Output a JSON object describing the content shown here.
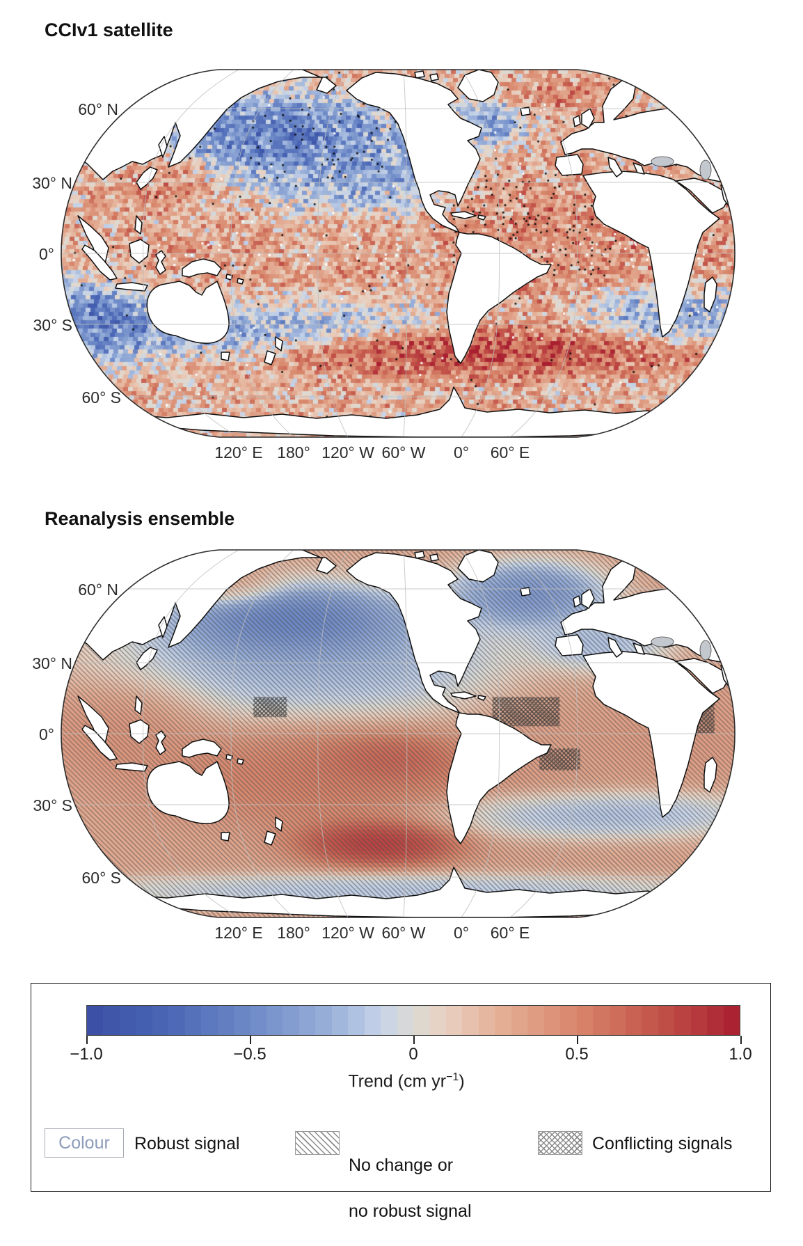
{
  "panels": [
    {
      "title": "CCIv1 satellite",
      "lat_ticks": [
        "60° N",
        "30° N",
        "0°",
        "30° S",
        "60° S"
      ],
      "lon_ticks": [
        "120° E",
        "180°",
        "120° W",
        "60° W",
        "0°",
        "60° E"
      ]
    },
    {
      "title": "Reanalysis ensemble",
      "lat_ticks": [
        "60° N",
        "30° N",
        "0°",
        "30° S",
        "60° S"
      ],
      "lon_ticks": [
        "120° E",
        "180°",
        "120° W",
        "60° W",
        "0°",
        "60° E"
      ]
    }
  ],
  "colorbar": {
    "tick_labels": [
      "−1.0",
      "−0.5",
      "0",
      "0.5",
      "1.0"
    ],
    "label_prefix": "Trend (cm yr",
    "label_sup": "−1",
    "label_suffix": ")",
    "n_segments": 40,
    "stops": [
      [
        0.0,
        "#3a4fa4"
      ],
      [
        0.125,
        "#4a66b5"
      ],
      [
        0.25,
        "#6d89c7"
      ],
      [
        0.375,
        "#9ab1da"
      ],
      [
        0.45,
        "#c6d3e8"
      ],
      [
        0.5,
        "#dcdad4"
      ],
      [
        0.55,
        "#e9d0c0"
      ],
      [
        0.625,
        "#e5b29a"
      ],
      [
        0.75,
        "#d8866b"
      ],
      [
        0.875,
        "#c25349"
      ],
      [
        1.0,
        "#a81e30"
      ]
    ]
  },
  "legend": [
    {
      "chip": "colour-box",
      "chip_text": "Colour",
      "label": "Robust signal"
    },
    {
      "chip": "diagonal-hatch",
      "lines": [
        "No change or",
        "no robust signal"
      ]
    },
    {
      "chip": "cross-hatch",
      "label": "Conflicting signals"
    }
  ],
  "chart_data": {
    "type": "heatmap",
    "title": "Sea-level trend comparison: satellite vs reanalysis ensemble",
    "unit": "cm yr−1",
    "colorbar_range": [
      -1.0,
      1.0
    ],
    "colorbar_ticks": [
      -1.0,
      -0.5,
      0,
      0.5,
      1.0
    ],
    "maps": [
      {
        "title": "CCIv1 satellite",
        "style": "noisy gridded trend field with black stippling and white data gaps",
        "base_trend": 0.25,
        "noise_amp": 0.48,
        "regions": [
          {
            "name": "north-pacific-negative-core",
            "u": 0.322,
            "v": 0.18,
            "ru": 0.14,
            "rv": 0.085,
            "trend": -0.8
          },
          {
            "name": "north-pacific-negative-east",
            "u": 0.446,
            "v": 0.284,
            "ru": 0.11,
            "rv": 0.075,
            "trend": -0.45
          },
          {
            "name": "kuroshio-positive",
            "u": 0.152,
            "v": 0.293,
            "ru": 0.055,
            "rv": 0.05,
            "trend": 0.55
          },
          {
            "name": "tropical-pacific-positive",
            "u": 0.281,
            "v": 0.559,
            "ru": 0.23,
            "rv": 0.1,
            "trend": 0.35
          },
          {
            "name": "south-pacific-negative-band",
            "u": 0.24,
            "v": 0.691,
            "ru": 0.22,
            "rv": 0.065,
            "trend": -0.55
          },
          {
            "name": "southwest-australia-negative",
            "u": 0.054,
            "v": 0.672,
            "ru": 0.075,
            "rv": 0.085,
            "trend": -0.85
          },
          {
            "name": "south-indian-negative",
            "u": 0.911,
            "v": 0.663,
            "ru": 0.095,
            "rv": 0.06,
            "trend": -0.5
          },
          {
            "name": "southern-ocean-positive-band",
            "u": 0.622,
            "v": 0.767,
            "ru": 0.23,
            "rv": 0.05,
            "trend": 0.9
          },
          {
            "name": "tropical-atlantic-positive",
            "u": 0.735,
            "v": 0.436,
            "ru": 0.13,
            "rv": 0.13,
            "trend": 0.5
          },
          {
            "name": "labrador-negative",
            "u": 0.627,
            "v": 0.142,
            "ru": 0.05,
            "rv": 0.05,
            "trend": -0.45
          },
          {
            "name": "norwegian-sea-positive",
            "u": 0.751,
            "v": 0.076,
            "ru": 0.06,
            "rv": 0.045,
            "trend": 0.5
          },
          {
            "name": "indian-ocean-positive",
            "u": 0.921,
            "v": 0.455,
            "ru": 0.11,
            "rv": 0.11,
            "trend": 0.45
          }
        ],
        "stipple_regions": [
          {
            "u0": 0.58,
            "v0": 0.28,
            "u1": 0.82,
            "v1": 0.56,
            "density": 0.3
          },
          {
            "u0": 0.28,
            "v0": 0.1,
            "u1": 0.48,
            "v1": 0.3,
            "density": 0.16
          },
          {
            "u0": 0.0,
            "v0": 0.0,
            "u1": 1.0,
            "v1": 1.0,
            "density": 0.03
          }
        ],
        "white_gap_band": {
          "v0": 0.47,
          "v1": 0.53,
          "density": 0.12
        }
      },
      {
        "title": "Reanalysis ensemble",
        "style": "smooth trend field, diagonal hatch = no robust signal, cross hatch = conflicting signals",
        "base_trend": 0.3,
        "noise_amp": 0.0,
        "regions": [
          {
            "name": "north-pacific-negative-core",
            "u": 0.343,
            "v": 0.199,
            "ru": 0.13,
            "rv": 0.075,
            "trend": -0.85
          },
          {
            "name": "north-pacific-negative-broad",
            "u": 0.374,
            "v": 0.294,
            "ru": 0.24,
            "rv": 0.14,
            "trend": -0.35
          },
          {
            "name": "bering-positive",
            "u": 0.25,
            "v": 0.095,
            "ru": 0.06,
            "rv": 0.045,
            "trend": 0.35
          },
          {
            "name": "west-pacific-positive",
            "u": 0.095,
            "v": 0.483,
            "ru": 0.1,
            "rv": 0.1,
            "trend": 0.45
          },
          {
            "name": "south-pacific-positive",
            "u": 0.405,
            "v": 0.606,
            "ru": 0.19,
            "rv": 0.11,
            "trend": 0.6
          },
          {
            "name": "southeast-pacific-positive-core",
            "u": 0.488,
            "v": 0.568,
            "ru": 0.075,
            "rv": 0.05,
            "trend": 0.8
          },
          {
            "name": "southern-pacific-maroon-core",
            "u": 0.472,
            "v": 0.795,
            "ru": 0.09,
            "rv": 0.05,
            "trend": 1.0
          },
          {
            "name": "subpolar-north-atlantic-negative",
            "u": 0.694,
            "v": 0.123,
            "ru": 0.09,
            "rv": 0.07,
            "trend": -0.6
          },
          {
            "name": "northeast-atlantic-negative",
            "u": 0.798,
            "v": 0.256,
            "ru": 0.08,
            "rv": 0.06,
            "trend": -0.3
          },
          {
            "name": "south-atlantic-indian-negative-band",
            "u": 0.798,
            "v": 0.72,
            "ru": 0.19,
            "rv": 0.05,
            "trend": -0.3
          },
          {
            "name": "indian-ocean-positive",
            "u": 0.921,
            "v": 0.502,
            "ru": 0.1,
            "rv": 0.095,
            "trend": 0.4
          },
          {
            "name": "antarctic-coastal-negative-strip",
            "u": 0.5,
            "v": 0.928,
            "ru": 0.38,
            "rv": 0.035,
            "trend": -0.25
          },
          {
            "name": "tropical-atlantic-positive",
            "u": 0.735,
            "v": 0.502,
            "ru": 0.1,
            "rv": 0.12,
            "trend": 0.35
          }
        ],
        "hatch": "diagonal over entire ocean",
        "crosshatch_regions": [
          {
            "u0": 0.64,
            "v0": 0.4,
            "u1": 0.74,
            "v1": 0.48
          },
          {
            "u0": 0.71,
            "v0": 0.54,
            "u1": 0.77,
            "v1": 0.6
          },
          {
            "u0": 0.92,
            "v0": 0.42,
            "u1": 0.97,
            "v1": 0.5
          },
          {
            "u0": 0.285,
            "v0": 0.4,
            "u1": 0.335,
            "v1": 0.455
          }
        ]
      }
    ]
  }
}
